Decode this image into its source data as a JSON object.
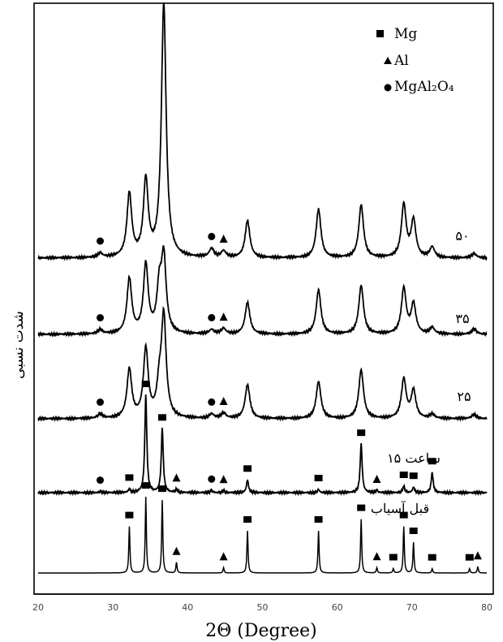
{
  "chart_data": {
    "type": "line",
    "title": "",
    "xlabel": "2Θ (Degree)",
    "ylabel": "شدت نسبی",
    "xlim": [
      20,
      80
    ],
    "x_ticks": [
      "20",
      "30",
      "40",
      "50",
      "60",
      "70",
      "80"
    ],
    "grid": false,
    "legend_position": "top-right",
    "legend": [
      {
        "marker": "square",
        "label": "Mg"
      },
      {
        "marker": "triangle",
        "label": "Al"
      },
      {
        "marker": "circle",
        "label": "MgAl₂O₄"
      }
    ],
    "series": [
      {
        "name": "قبل آسیاب",
        "peaks": [
          {
            "x": 32.2,
            "h": 0.44,
            "phase": "Mg"
          },
          {
            "x": 34.4,
            "h": 0.72,
            "phase": "Mg"
          },
          {
            "x": 36.6,
            "h": 0.69,
            "phase": "Mg"
          },
          {
            "x": 38.5,
            "h": 0.1,
            "phase": "Al"
          },
          {
            "x": 44.8,
            "h": 0.05,
            "phase": "Al"
          },
          {
            "x": 48.0,
            "h": 0.4,
            "phase": "Mg"
          },
          {
            "x": 57.5,
            "h": 0.4,
            "phase": "Mg"
          },
          {
            "x": 63.2,
            "h": 0.51,
            "phase": "Mg"
          },
          {
            "x": 65.3,
            "h": 0.05,
            "phase": "Al"
          },
          {
            "x": 67.5,
            "h": 0.04,
            "phase": "Mg"
          },
          {
            "x": 68.9,
            "h": 0.44,
            "phase": "Mg"
          },
          {
            "x": 70.2,
            "h": 0.29,
            "phase": "Mg"
          },
          {
            "x": 72.7,
            "h": 0.04,
            "phase": "Mg"
          },
          {
            "x": 77.7,
            "h": 0.04,
            "phase": "Mg"
          },
          {
            "x": 78.8,
            "h": 0.06,
            "phase": "Al"
          }
        ]
      },
      {
        "name": "۱۵ ساعت",
        "peaks": [
          {
            "x": 28.3,
            "h": 0.01,
            "phase": "MgAl2O4"
          },
          {
            "x": 32.2,
            "h": 0.03,
            "phase": "Mg"
          },
          {
            "x": 34.4,
            "h": 0.92,
            "phase": "Mg"
          },
          {
            "x": 36.6,
            "h": 0.6,
            "phase": "Mg"
          },
          {
            "x": 38.5,
            "h": 0.03,
            "phase": "Al"
          },
          {
            "x": 43.2,
            "h": 0.02,
            "phase": "MgAl2O4"
          },
          {
            "x": 44.8,
            "h": 0.02,
            "phase": "Al"
          },
          {
            "x": 48.0,
            "h": 0.12,
            "phase": "Mg"
          },
          {
            "x": 57.5,
            "h": 0.03,
            "phase": "Mg"
          },
          {
            "x": 63.2,
            "h": 0.46,
            "phase": "Mg"
          },
          {
            "x": 65.3,
            "h": 0.02,
            "phase": "Al"
          },
          {
            "x": 68.9,
            "h": 0.06,
            "phase": "Mg"
          },
          {
            "x": 70.2,
            "h": 0.05,
            "phase": "Mg"
          },
          {
            "x": 72.7,
            "h": 0.19,
            "phase": "Mg"
          }
        ]
      },
      {
        "name": "۲۵",
        "peaks": [
          {
            "x": 28.3,
            "h": 0.04,
            "phase": "MgAl2O4"
          },
          {
            "x": 32.2,
            "h": 0.46,
            "phase": "Mg"
          },
          {
            "x": 34.4,
            "h": 0.65,
            "phase": "Mg"
          },
          {
            "x": 36.2,
            "h": 0.26,
            "phase": "Mg"
          },
          {
            "x": 36.8,
            "h": 0.95,
            "phase": "Mg"
          },
          {
            "x": 43.2,
            "h": 0.04,
            "phase": "MgAl2O4"
          },
          {
            "x": 44.8,
            "h": 0.05,
            "phase": "Al"
          },
          {
            "x": 48.0,
            "h": 0.32,
            "phase": "Mg"
          },
          {
            "x": 57.5,
            "h": 0.35,
            "phase": "Mg"
          },
          {
            "x": 63.2,
            "h": 0.46,
            "phase": "Mg"
          },
          {
            "x": 68.9,
            "h": 0.37,
            "phase": "Mg"
          },
          {
            "x": 70.2,
            "h": 0.26,
            "phase": "Mg"
          },
          {
            "x": 72.7,
            "h": 0.04,
            "phase": "Mg"
          },
          {
            "x": 78.3,
            "h": 0.04,
            "phase": "Mg"
          }
        ]
      },
      {
        "name": "۳۵",
        "peaks": [
          {
            "x": 28.3,
            "h": 0.04,
            "phase": "MgAl2O4"
          },
          {
            "x": 32.2,
            "h": 0.52,
            "phase": "Mg"
          },
          {
            "x": 34.4,
            "h": 0.65,
            "phase": "Mg"
          },
          {
            "x": 36.2,
            "h": 0.4,
            "phase": "Mg"
          },
          {
            "x": 36.8,
            "h": 0.7,
            "phase": "Mg"
          },
          {
            "x": 43.2,
            "h": 0.04,
            "phase": "MgAl2O4"
          },
          {
            "x": 44.8,
            "h": 0.05,
            "phase": "Al"
          },
          {
            "x": 48.0,
            "h": 0.3,
            "phase": "Mg"
          },
          {
            "x": 57.5,
            "h": 0.42,
            "phase": "Mg"
          },
          {
            "x": 63.2,
            "h": 0.46,
            "phase": "Mg"
          },
          {
            "x": 68.9,
            "h": 0.43,
            "phase": "Mg"
          },
          {
            "x": 70.2,
            "h": 0.28,
            "phase": "Mg"
          },
          {
            "x": 72.7,
            "h": 0.06,
            "phase": "Mg"
          },
          {
            "x": 78.3,
            "h": 0.05,
            "phase": "Mg"
          }
        ]
      },
      {
        "name": "۵۰",
        "peaks": [
          {
            "x": 28.3,
            "h": 0.04,
            "phase": "MgAl2O4"
          },
          {
            "x": 32.2,
            "h": 0.6,
            "phase": "Mg"
          },
          {
            "x": 34.4,
            "h": 0.72,
            "phase": "Mg"
          },
          {
            "x": 36.8,
            "h": 2.4,
            "phase": "Mg"
          },
          {
            "x": 43.2,
            "h": 0.08,
            "phase": "MgAl2O4"
          },
          {
            "x": 44.8,
            "h": 0.06,
            "phase": "Al"
          },
          {
            "x": 48.0,
            "h": 0.35,
            "phase": "Mg"
          },
          {
            "x": 57.5,
            "h": 0.46,
            "phase": "Mg"
          },
          {
            "x": 63.2,
            "h": 0.5,
            "phase": "Mg"
          },
          {
            "x": 68.9,
            "h": 0.5,
            "phase": "Mg"
          },
          {
            "x": 70.2,
            "h": 0.35,
            "phase": "Mg"
          },
          {
            "x": 72.7,
            "h": 0.1,
            "phase": "Mg"
          },
          {
            "x": 78.3,
            "h": 0.04,
            "phase": "Mg"
          }
        ]
      }
    ]
  }
}
